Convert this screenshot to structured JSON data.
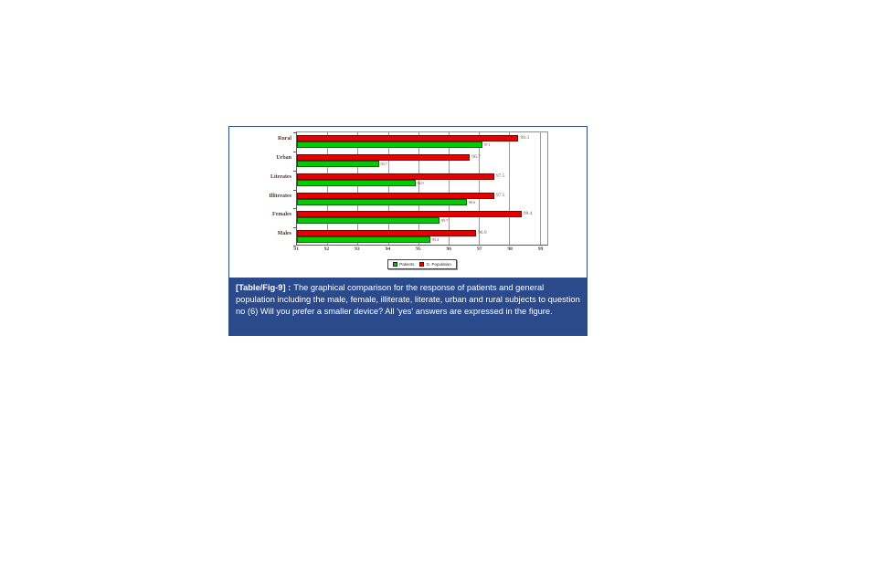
{
  "figure": {
    "caption_label": "[Table/Fig-9] :",
    "caption_text": "The graphical comparison for the response of patients and general population including the male, female, illiterate, literate, urban and rural subjects to question no (6) Will you prefer a smaller device? All 'yes' answers are expressed in the figure.",
    "caption_bg": "#2b4a8c",
    "border_color": "#2f4e7e"
  },
  "chart_data": {
    "type": "bar",
    "orientation": "horizontal",
    "categories": [
      "Rural",
      "Urban",
      "Literates",
      "Illiterates",
      "Females",
      "Males"
    ],
    "series": [
      {
        "name": "G. Population",
        "color": "#e60000",
        "border_color": "#7a0000",
        "values": [
          98.3,
          96.7,
          97.5,
          97.5,
          98.4,
          96.9
        ],
        "labels": [
          "98.3",
          "96.7",
          "97.5",
          "97.5",
          "98.4",
          "96.9"
        ]
      },
      {
        "name": "Patients",
        "color": "#00cc00",
        "border_color": "#006400",
        "values": [
          97.1,
          93.7,
          94.9,
          96.6,
          95.7,
          95.4
        ],
        "labels": [
          "97.1",
          "93.7",
          "94.9",
          "96.6",
          "95.7",
          "95.4"
        ]
      }
    ],
    "xlim": [
      91,
      99.25
    ],
    "xticks": [
      "91",
      "92",
      "93",
      "94",
      "95",
      "96",
      "97",
      "98",
      "99"
    ],
    "grid": true,
    "legend_position": "bottom",
    "legend": [
      {
        "label": "Patients",
        "color": "#00cc00"
      },
      {
        "label": "G. Population",
        "color": "#e60000"
      }
    ]
  }
}
